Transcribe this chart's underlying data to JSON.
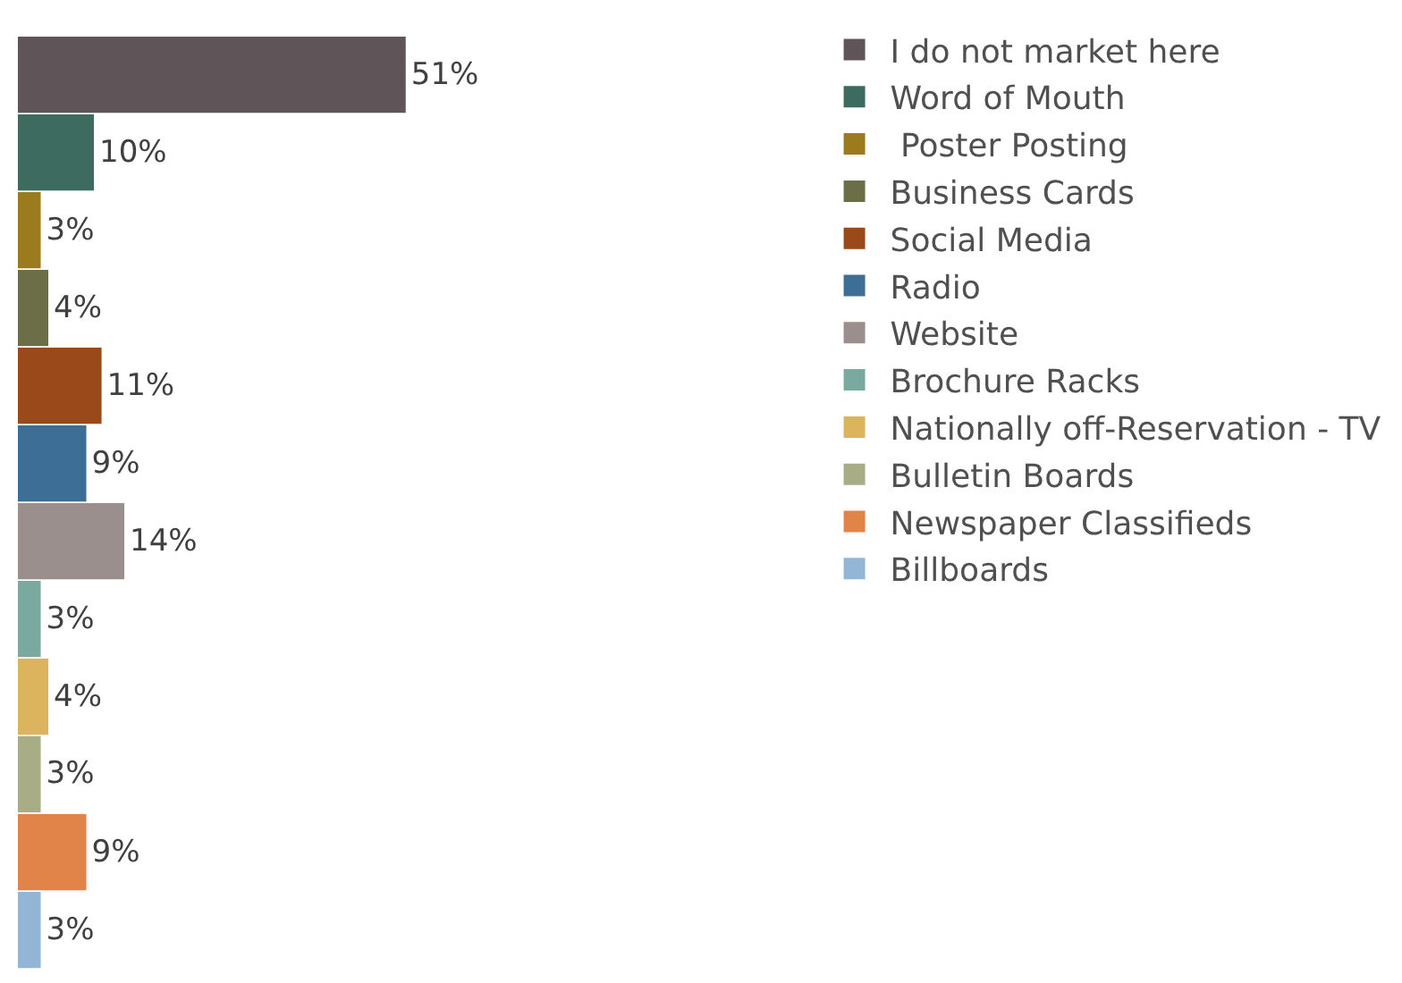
{
  "chart_data": {
    "type": "bar",
    "orientation": "horizontal",
    "categories": [
      null
    ],
    "series": [
      {
        "name": "I do not market here",
        "color": "#5f5457",
        "values": [
          51
        ],
        "value_labels": [
          "51%"
        ]
      },
      {
        "name": "Word of Mouth",
        "color": "#3e6b5f",
        "values": [
          10
        ],
        "value_labels": [
          "10%"
        ]
      },
      {
        "name": " Poster Posting",
        "color": "#9c7a1e",
        "values": [
          3
        ],
        "value_labels": [
          "3%"
        ]
      },
      {
        "name": "Business Cards",
        "color": "#6b6e46",
        "values": [
          4
        ],
        "value_labels": [
          "4%"
        ]
      },
      {
        "name": "Social Media",
        "color": "#9a4a1a",
        "values": [
          11
        ],
        "value_labels": [
          "11%"
        ]
      },
      {
        "name": "Radio",
        "color": "#3c6e96",
        "values": [
          9
        ],
        "value_labels": [
          "9%"
        ]
      },
      {
        "name": "Website",
        "color": "#9a8f8c",
        "values": [
          14
        ],
        "value_labels": [
          "14%"
        ]
      },
      {
        "name": "Brochure Racks",
        "color": "#7aa9a0",
        "values": [
          3
        ],
        "value_labels": [
          "3%"
        ]
      },
      {
        "name": "Nationally off-Reservation - TV",
        "color": "#dcb45e",
        "values": [
          4
        ],
        "value_labels": [
          "4%"
        ]
      },
      {
        "name": "Bulletin Boards",
        "color": "#a8ad86",
        "values": [
          3
        ],
        "value_labels": [
          "3%"
        ]
      },
      {
        "name": "Newspaper Classifieds",
        "color": "#e0844a",
        "values": [
          9
        ],
        "value_labels": [
          "9%"
        ]
      },
      {
        "name": "Billboards",
        "color": "#94b6d6",
        "values": [
          3
        ],
        "value_labels": [
          "3%"
        ]
      }
    ],
    "tick_labels": false,
    "legend": "right"
  }
}
